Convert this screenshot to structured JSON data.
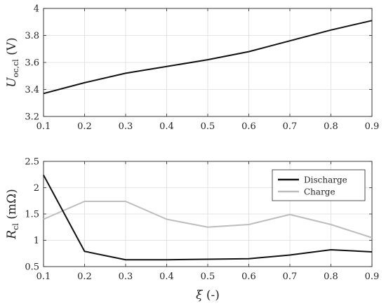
{
  "chart_data": [
    {
      "type": "line",
      "title": "",
      "ylabel_main": "U",
      "ylabel_sub": "oc,cl",
      "ylabel_unit": " (V)",
      "xlabel": "",
      "xlim": [
        0.1,
        0.9
      ],
      "ylim": [
        3.2,
        4.0
      ],
      "xticks": [
        "0.1",
        "0.2",
        "0.3",
        "0.4",
        "0.5",
        "0.6",
        "0.7",
        "0.8",
        "0.9"
      ],
      "yticks": [
        "3.2",
        "3.4",
        "3.6",
        "3.8",
        "4"
      ],
      "grid": true,
      "x": [
        0.1,
        0.2,
        0.3,
        0.4,
        0.5,
        0.6,
        0.7,
        0.8,
        0.9
      ],
      "series": [
        {
          "values": [
            3.37,
            3.45,
            3.52,
            3.57,
            3.62,
            3.68,
            3.76,
            3.84,
            3.91
          ],
          "color": "#111111"
        }
      ]
    },
    {
      "type": "line",
      "title": "",
      "ylabel_main": "R",
      "ylabel_sub": "cl",
      "ylabel_unit": " (mΩ)",
      "xlabel": "ξ (-)",
      "xlim": [
        0.1,
        0.9
      ],
      "ylim": [
        0.5,
        2.5
      ],
      "xticks": [
        "0.1",
        "0.2",
        "0.3",
        "0.4",
        "0.5",
        "0.6",
        "0.7",
        "0.8",
        "0.9"
      ],
      "yticks": [
        "0.5",
        "1",
        "1.5",
        "2",
        "2.5"
      ],
      "grid": true,
      "legend_position": "top-right",
      "x": [
        0.1,
        0.2,
        0.3,
        0.4,
        0.5,
        0.6,
        0.7,
        0.8,
        0.9
      ],
      "series": [
        {
          "name": "Discharge",
          "values": [
            2.24,
            0.79,
            0.63,
            0.63,
            0.64,
            0.65,
            0.72,
            0.82,
            0.78
          ],
          "color": "#111111"
        },
        {
          "name": "Charge",
          "values": [
            1.4,
            1.74,
            1.74,
            1.4,
            1.25,
            1.3,
            1.49,
            1.3,
            1.05
          ],
          "color": "#bdbdbd"
        }
      ]
    }
  ]
}
